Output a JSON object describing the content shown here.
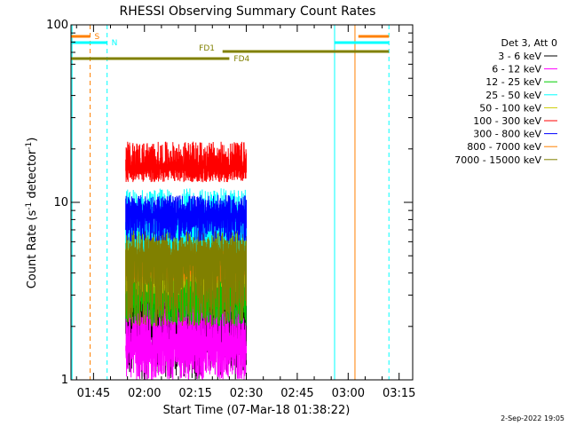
{
  "chart_data": {
    "type": "line",
    "title": "RHESSI Observing Summary Count Rates",
    "xlabel": "Start Time (07-Mar-18 01:38:22)",
    "ylabel_main": "Count Rate (s",
    "ylabel_sup1": "-1",
    "ylabel_mid": " detector",
    "ylabel_sup2": "-1",
    "ylabel_end": ")",
    "y_scale": "log",
    "ylim": [
      1,
      100
    ],
    "xlim": [
      "01:38:22",
      "03:19:00"
    ],
    "grid": false,
    "legend_position": "right",
    "x_ticks": [
      "01:45",
      "02:00",
      "02:15",
      "02:30",
      "02:45",
      "03:00",
      "03:15"
    ],
    "y_ticks": [
      "1",
      "10",
      "100"
    ],
    "legend_header": "Det 3, Att 0",
    "data_window": [
      "01:54:30",
      "02:30:00"
    ],
    "series": [
      {
        "name": "3 - 6 keV",
        "color": "#000000",
        "level": 2.5,
        "min": 1.0,
        "max": 7.0
      },
      {
        "name": "6 - 12 keV",
        "color": "#ff00ff",
        "level": 1.5,
        "min": 1.0,
        "max": 3.0
      },
      {
        "name": "12 - 25 keV",
        "color": "#00cc00",
        "level": 3.0,
        "min": 2.0,
        "max": 6.0
      },
      {
        "name": "25 - 50 keV",
        "color": "#00ffff",
        "level": 7.0,
        "min": 4.0,
        "max": 12.0
      },
      {
        "name": "50 - 100 keV",
        "color": "#cccc00",
        "level": 4.5,
        "min": 3.0,
        "max": 7.0
      },
      {
        "name": "100 - 300 keV",
        "color": "#ff0000",
        "level": 15.5,
        "min": 13.0,
        "max": 22.0
      },
      {
        "name": "300 - 800 keV",
        "color": "#0000ff",
        "level": 8.5,
        "min": 6.0,
        "max": 11.0
      },
      {
        "name": "800 - 7000 keV",
        "color": "#ff8000",
        "level": 4.3,
        "min": 3.5,
        "max": 5.5
      },
      {
        "name": "7000 - 15000 keV",
        "color": "#808000",
        "level": 5.0,
        "min": 2.0,
        "max": 7.0
      }
    ],
    "flags": [
      {
        "label": "S",
        "color": "#ff8000",
        "segments": [
          [
            "01:38:22",
            "01:44:00"
          ],
          [
            "03:03:00",
            "03:12:00"
          ]
        ],
        "label_at": "01:44:00"
      },
      {
        "label": "N",
        "color": "#00ffff",
        "segments": [
          [
            "01:38:22",
            "01:49:00"
          ],
          [
            "02:56:00",
            "03:12:00"
          ]
        ],
        "label_at": "01:49:00"
      },
      {
        "label": "FD1",
        "color": "#808000",
        "segments": [
          [
            "02:23:00",
            "03:12:00"
          ]
        ],
        "label_at": "02:15:00"
      },
      {
        "label": "FD4",
        "color": "#808000",
        "segments": [
          [
            "01:38:22",
            "02:25:00"
          ]
        ],
        "label_at": "02:25:00"
      }
    ],
    "vlines": [
      {
        "time": "01:38:40",
        "color": "#00ffff",
        "style": "solid"
      },
      {
        "time": "01:44:00",
        "color": "#ff8000",
        "style": "dashed"
      },
      {
        "time": "01:49:00",
        "color": "#00ffff",
        "style": "dashed"
      },
      {
        "time": "02:56:00",
        "color": "#00ffff",
        "style": "solid"
      },
      {
        "time": "03:02:00",
        "color": "#ff8000",
        "style": "solid"
      },
      {
        "time": "03:12:00",
        "color": "#00ffff",
        "style": "dashed"
      }
    ]
  },
  "footer": {
    "date": "2-Sep-2022 19:05"
  }
}
